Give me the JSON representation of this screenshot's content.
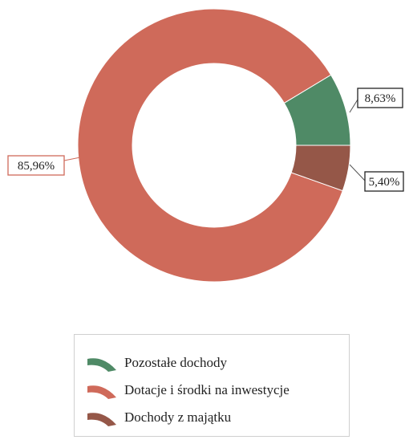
{
  "chart_data": {
    "type": "pie",
    "donut": true,
    "slices": [
      {
        "name": "Pozostałe dochody",
        "value": 8.63,
        "label": "8,63%",
        "color": "#4f8a66"
      },
      {
        "name": "Dotacje i środki na inwestycje",
        "value": 85.96,
        "label": "85,96%",
        "color": "#cf6a5a"
      },
      {
        "name": "Dochody z majątku",
        "value": 5.4,
        "label": "5,40%",
        "color": "#955748"
      }
    ],
    "legend": {
      "placement": "bottom",
      "items": [
        "Pozostałe dochody",
        "Dotacje i środki na inwestycje",
        "Dochody z majątku"
      ]
    }
  }
}
